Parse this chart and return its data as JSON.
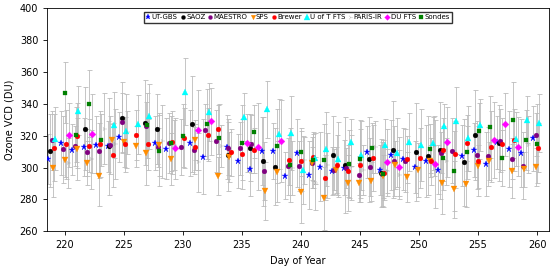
{
  "title": "",
  "xlabel": "Day of Year",
  "ylabel": "Ozone VCD (DU)",
  "xlim": [
    218.5,
    261
  ],
  "ylim": [
    260,
    400
  ],
  "xticks": [
    220,
    225,
    230,
    235,
    240,
    245,
    250,
    255,
    260
  ],
  "yticks": [
    260,
    280,
    300,
    320,
    340,
    360,
    380,
    400
  ],
  "instruments": [
    "UT-GBS",
    "SAOZ",
    "MAESTRO",
    "SPS",
    "Brewer",
    "U of T FTS",
    "PARIS-IR",
    "DU FTS",
    "Sondes"
  ],
  "colors": [
    "blue",
    "black",
    "purple",
    "darkorange",
    "red",
    "cyan",
    "gray",
    "magenta",
    "green"
  ],
  "markers": [
    "*",
    "o",
    "o",
    "v",
    "o",
    "^",
    "4",
    "D",
    "s"
  ],
  "markersizes": [
    4.5,
    3.5,
    3.5,
    4,
    3.5,
    4.5,
    4,
    3.5,
    3.5
  ],
  "error_color": "#bbbbbb",
  "seed": 42
}
